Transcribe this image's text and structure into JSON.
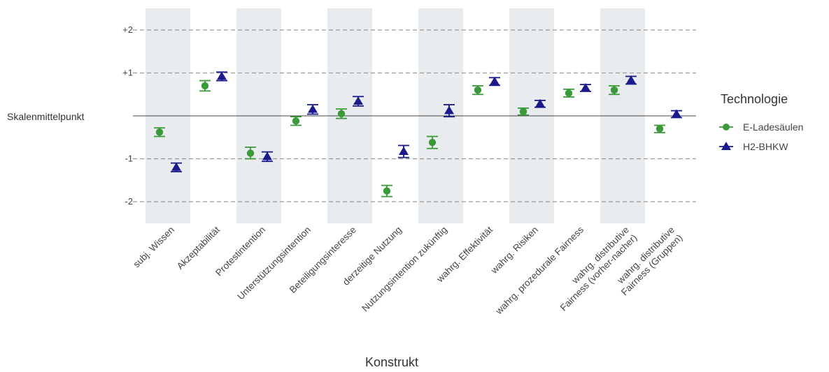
{
  "chart_data": {
    "type": "scatter",
    "xlabel": "Konstrukt",
    "ylabel": "",
    "ylim": [
      -2.45,
      2.5
    ],
    "grid": "horizontal dashed at ±1 and ±2",
    "midpoint_label": "Skalenmittelpunkt",
    "midpoint_value": 0,
    "categories": [
      "subj. Wissen",
      "Akzeptabilität",
      "Protestintention",
      "Unterstützungsintention",
      "Beteiligungsinteresse",
      "derzeitige Nutzung",
      "Nutzungsintention zukünftig",
      "wahrg. Effektivität",
      "wahrg. Risiken",
      "wahrg. prozedurale Fairness",
      "wahrg. distributive\nFairness (vorher-nacher)",
      "wahrg. distributive\nFairness (Gruppen)"
    ],
    "y_ticks": [
      {
        "value": 2,
        "label": "+2"
      },
      {
        "value": 1,
        "label": "+1"
      },
      {
        "value": -1,
        "label": "-1"
      },
      {
        "value": -2,
        "label": "-2"
      }
    ],
    "legend": {
      "title": "Technologie",
      "position": "right"
    },
    "series": [
      {
        "name": "E-Ladesäulen",
        "color": "#3a9a3a",
        "marker": "circle",
        "values": [
          -0.38,
          0.7,
          -0.87,
          -0.12,
          0.05,
          -1.75,
          -0.62,
          0.6,
          0.1,
          0.53,
          0.6,
          -0.3
        ],
        "error_low": [
          -0.48,
          0.58,
          -1.0,
          -0.22,
          -0.06,
          -1.88,
          -0.76,
          0.5,
          0.02,
          0.44,
          0.5,
          -0.39
        ],
        "error_high": [
          -0.28,
          0.82,
          -0.73,
          -0.02,
          0.16,
          -1.62,
          -0.48,
          0.7,
          0.18,
          0.62,
          0.7,
          -0.22
        ]
      },
      {
        "name": "H2-BHKW",
        "color": "#1a1a8c",
        "marker": "triangle",
        "values": [
          -1.2,
          0.92,
          -0.95,
          0.15,
          0.34,
          -0.83,
          0.12,
          0.8,
          0.28,
          0.65,
          0.83,
          0.04
        ],
        "error_low": [
          -1.3,
          0.82,
          -1.06,
          0.04,
          0.23,
          -0.97,
          -0.02,
          0.71,
          0.2,
          0.57,
          0.74,
          -0.04
        ],
        "error_high": [
          -1.1,
          1.02,
          -0.84,
          0.26,
          0.45,
          -0.69,
          0.26,
          0.89,
          0.36,
          0.73,
          0.92,
          0.12
        ]
      }
    ]
  }
}
